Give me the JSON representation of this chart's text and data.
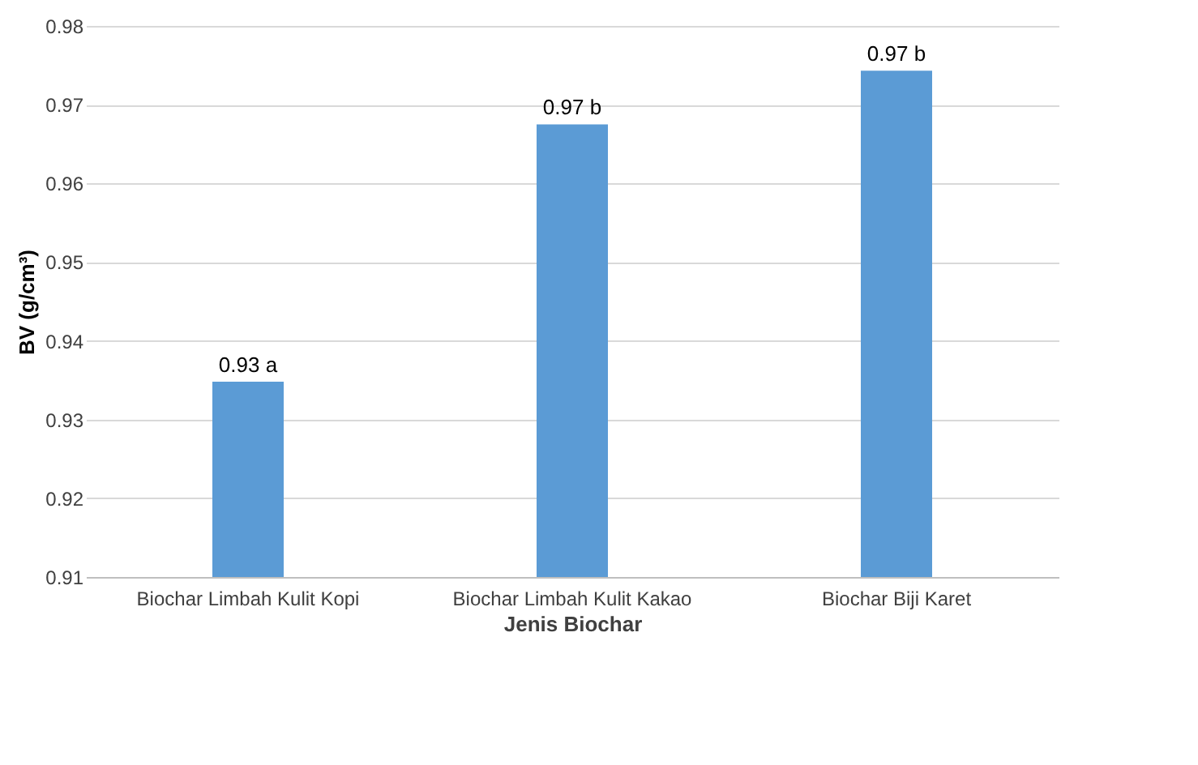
{
  "chart_data": {
    "type": "bar",
    "xlabel": "Jenis Biochar",
    "ylabel": "BV (g/cm³)",
    "categories": [
      "Biochar Limbah Kulit Kopi",
      "Biochar Limbah Kulit Kakao",
      "Biochar Biji Karet"
    ],
    "values": [
      0.9348,
      0.9675,
      0.9743
    ],
    "value_labels": [
      "0.93 a",
      "0.97 b",
      "0.97 b"
    ],
    "color": "#5b9bd5",
    "ylim": [
      0.91,
      0.98
    ],
    "yticks": [
      0.91,
      0.92,
      0.93,
      0.94,
      0.95,
      0.96,
      0.97,
      0.98
    ],
    "grid": "y"
  }
}
